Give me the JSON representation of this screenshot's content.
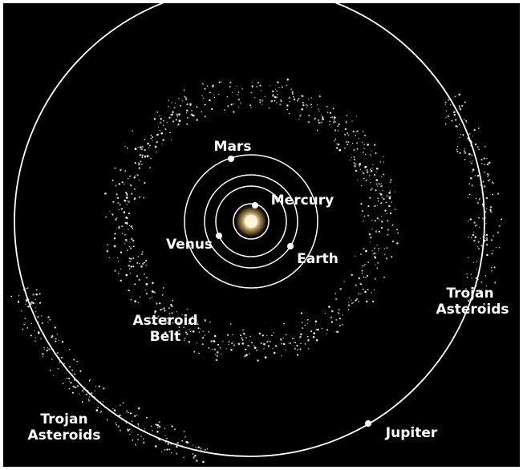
{
  "labels": {
    "mars": "Mars",
    "mercury": "Mercury",
    "venus": "Venus",
    "earth": "Earth",
    "asteroid_belt": [
      "Asteroid",
      "Belt"
    ],
    "trojan_right": [
      "Trojan",
      "Asteroids"
    ],
    "trojan_left": [
      "Trojan",
      "Asteroids"
    ],
    "jupiter": "Jupiter"
  }
}
